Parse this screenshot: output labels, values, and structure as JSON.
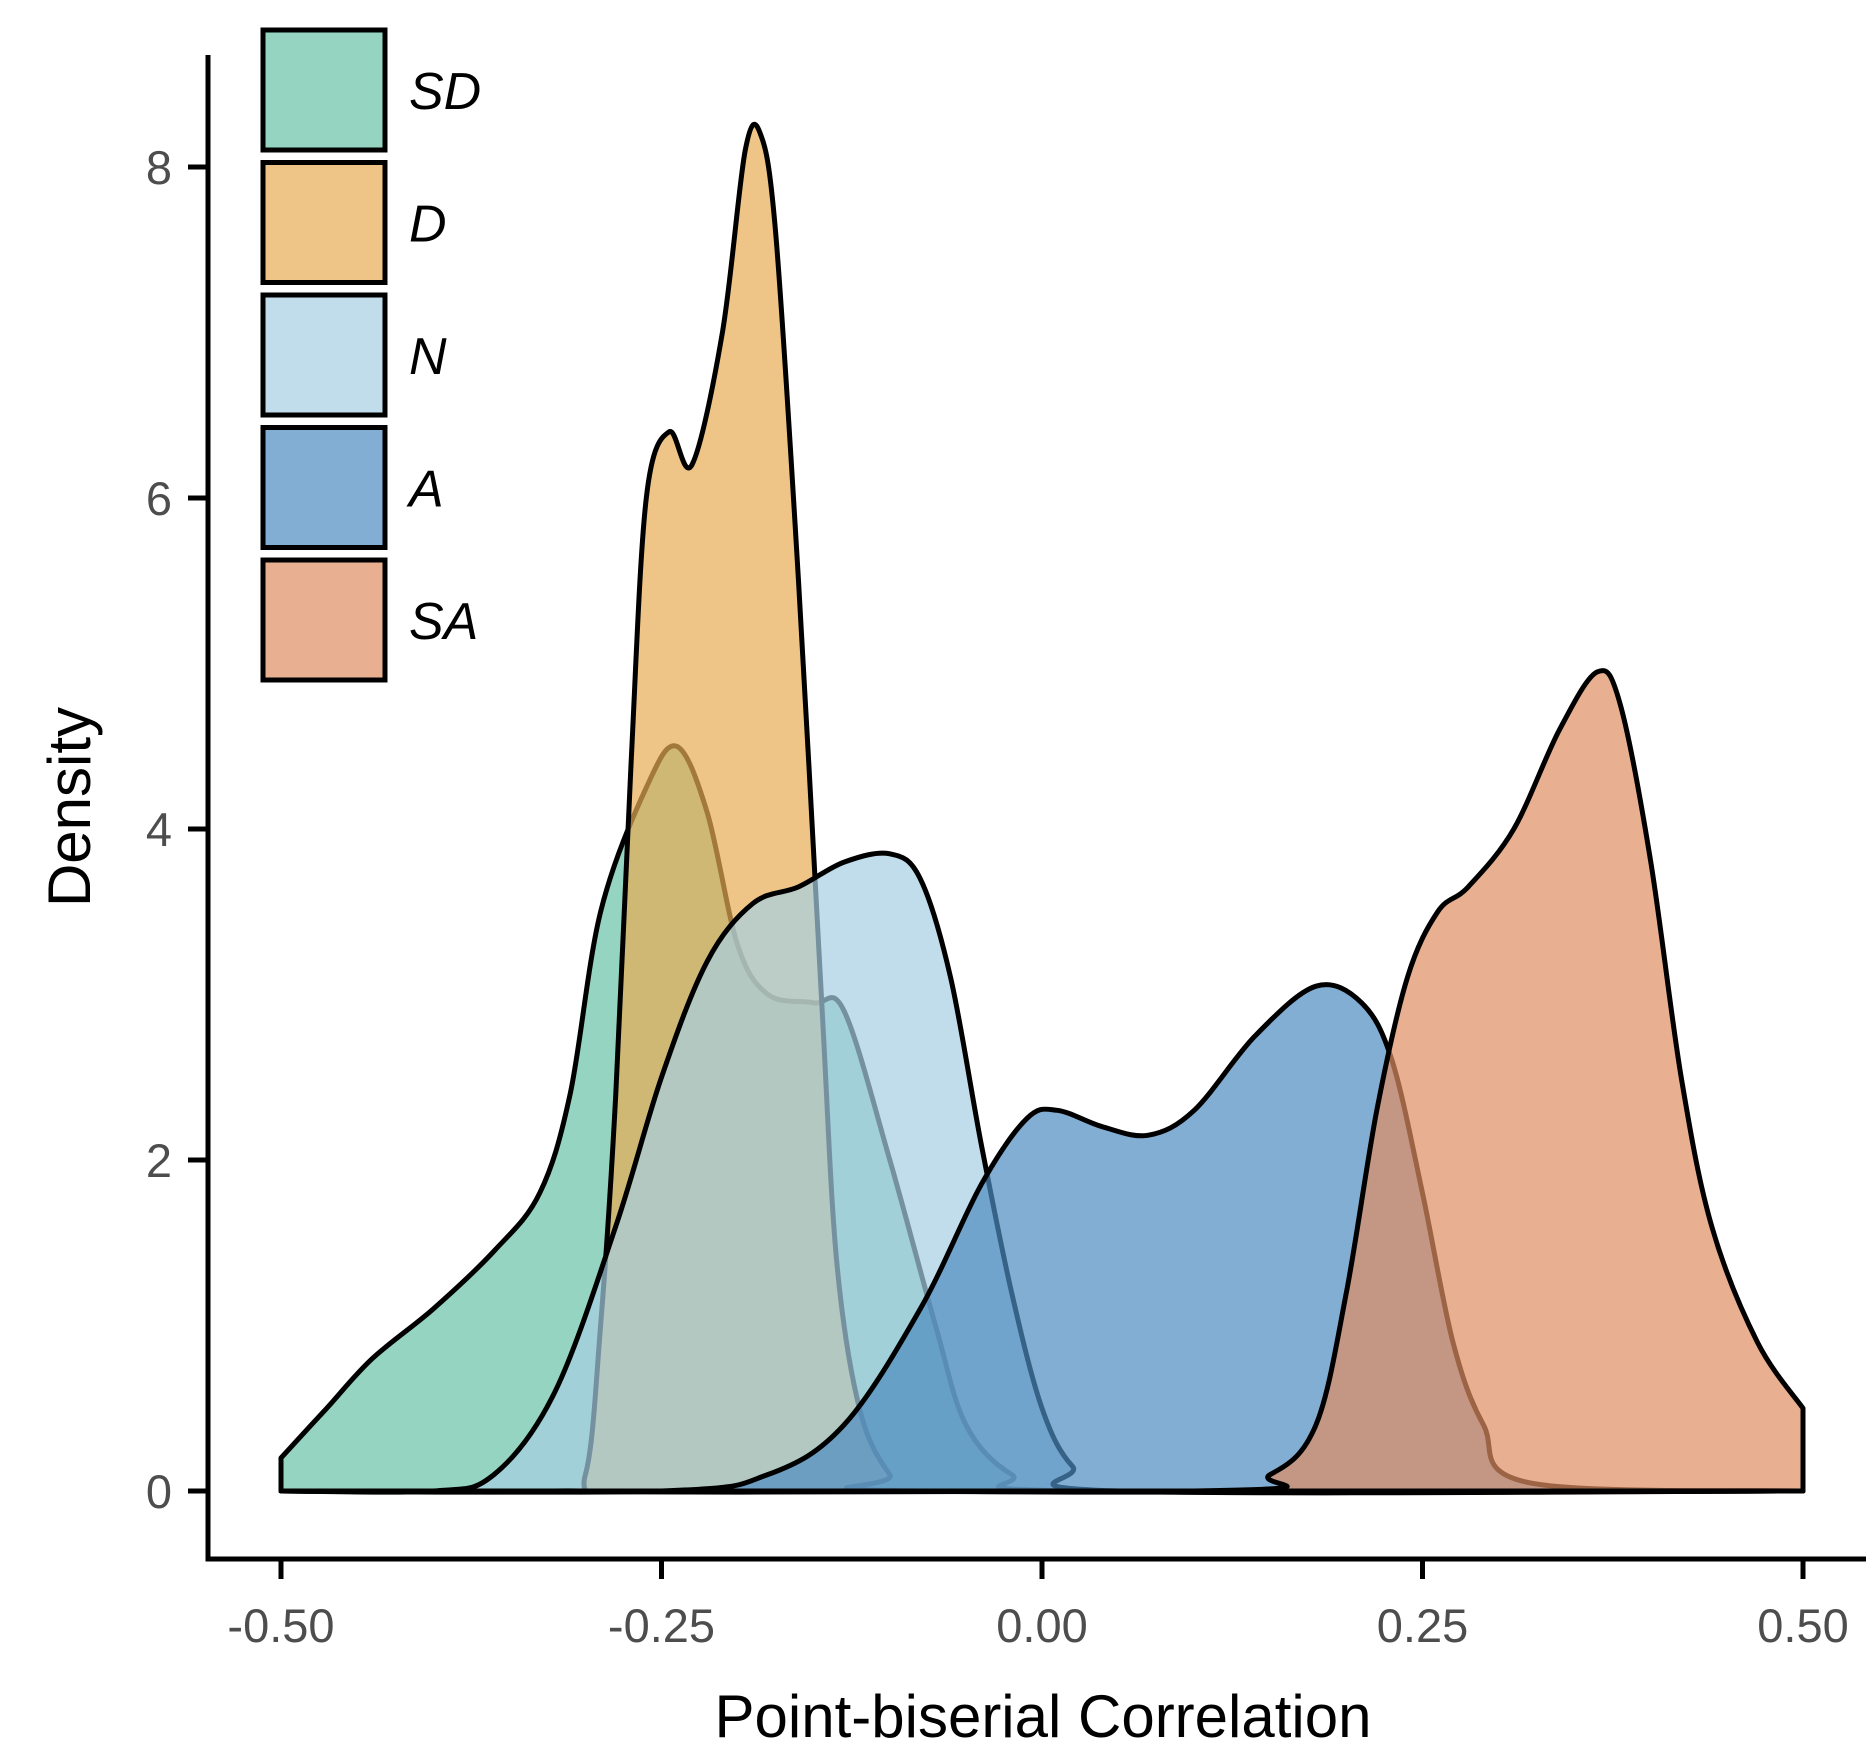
{
  "chart_data": {
    "type": "area",
    "title": "",
    "xlabel": "Point-biserial Correlation",
    "ylabel": "Density",
    "xlim": [
      -0.55,
      0.52
    ],
    "ylim": [
      -0.2,
      8.6
    ],
    "x_ticks": [
      -0.5,
      -0.25,
      0.0,
      0.25,
      0.5
    ],
    "x_tick_labels": [
      "-0.50",
      "-0.25",
      "0.00",
      "0.25",
      "0.50"
    ],
    "y_ticks": [
      0,
      2,
      4,
      6,
      8
    ],
    "y_tick_labels": [
      "0",
      "2",
      "4",
      "6",
      "8"
    ],
    "grid": false,
    "legend_position": "top-left",
    "series": [
      {
        "name": "SD",
        "color": "#66c2a5",
        "points": [
          [
            -0.5,
            0.2
          ],
          [
            -0.47,
            0.5
          ],
          [
            -0.44,
            0.8
          ],
          [
            -0.4,
            1.1
          ],
          [
            -0.36,
            1.45
          ],
          [
            -0.33,
            1.8
          ],
          [
            -0.31,
            2.4
          ],
          [
            -0.29,
            3.5
          ],
          [
            -0.26,
            4.25
          ],
          [
            -0.24,
            4.5
          ],
          [
            -0.22,
            4.1
          ],
          [
            -0.2,
            3.3
          ],
          [
            -0.18,
            3.0
          ],
          [
            -0.15,
            2.95
          ],
          [
            -0.13,
            2.9
          ],
          [
            -0.1,
            2.0
          ],
          [
            -0.07,
            1.0
          ],
          [
            -0.05,
            0.4
          ],
          [
            -0.02,
            0.1
          ],
          [
            0.02,
            0.0
          ],
          [
            0.5,
            0.0
          ]
        ]
      },
      {
        "name": "D",
        "color": "#e7ad52",
        "points": [
          [
            -0.5,
            0.0
          ],
          [
            -0.32,
            0.0
          ],
          [
            -0.3,
            0.1
          ],
          [
            -0.29,
            1.0
          ],
          [
            -0.28,
            2.4
          ],
          [
            -0.27,
            4.4
          ],
          [
            -0.26,
            6.0
          ],
          [
            -0.245,
            6.4
          ],
          [
            -0.23,
            6.2
          ],
          [
            -0.21,
            7.0
          ],
          [
            -0.195,
            8.1
          ],
          [
            -0.185,
            8.2
          ],
          [
            -0.175,
            7.6
          ],
          [
            -0.16,
            5.5
          ],
          [
            -0.145,
            3.0
          ],
          [
            -0.135,
            1.4
          ],
          [
            -0.12,
            0.5
          ],
          [
            -0.1,
            0.1
          ],
          [
            -0.08,
            0.0
          ],
          [
            0.5,
            0.0
          ]
        ]
      },
      {
        "name": "N",
        "color": "#a6cee3",
        "points": [
          [
            -0.5,
            0.0
          ],
          [
            -0.4,
            0.0
          ],
          [
            -0.36,
            0.1
          ],
          [
            -0.32,
            0.6
          ],
          [
            -0.28,
            1.6
          ],
          [
            -0.25,
            2.5
          ],
          [
            -0.22,
            3.2
          ],
          [
            -0.19,
            3.55
          ],
          [
            -0.16,
            3.65
          ],
          [
            -0.13,
            3.8
          ],
          [
            -0.1,
            3.85
          ],
          [
            -0.08,
            3.7
          ],
          [
            -0.06,
            3.1
          ],
          [
            -0.04,
            2.1
          ],
          [
            -0.02,
            1.2
          ],
          [
            0.0,
            0.5
          ],
          [
            0.02,
            0.15
          ],
          [
            0.05,
            0.0
          ],
          [
            0.5,
            0.0
          ]
        ]
      },
      {
        "name": "A",
        "color": "#4f8bc0",
        "points": [
          [
            -0.5,
            0.0
          ],
          [
            -0.25,
            0.0
          ],
          [
            -0.18,
            0.1
          ],
          [
            -0.13,
            0.4
          ],
          [
            -0.08,
            1.1
          ],
          [
            -0.04,
            1.85
          ],
          [
            -0.01,
            2.25
          ],
          [
            0.01,
            2.3
          ],
          [
            0.04,
            2.2
          ],
          [
            0.07,
            2.15
          ],
          [
            0.1,
            2.3
          ],
          [
            0.14,
            2.75
          ],
          [
            0.18,
            3.05
          ],
          [
            0.21,
            2.95
          ],
          [
            0.23,
            2.6
          ],
          [
            0.25,
            1.8
          ],
          [
            0.27,
            0.9
          ],
          [
            0.29,
            0.4
          ],
          [
            0.32,
            0.05
          ],
          [
            0.5,
            0.0
          ]
        ]
      },
      {
        "name": "SA",
        "color": "#de8d63",
        "points": [
          [
            -0.5,
            0.0
          ],
          [
            0.1,
            0.0
          ],
          [
            0.15,
            0.1
          ],
          [
            0.18,
            0.4
          ],
          [
            0.2,
            1.2
          ],
          [
            0.22,
            2.3
          ],
          [
            0.24,
            3.1
          ],
          [
            0.26,
            3.5
          ],
          [
            0.28,
            3.65
          ],
          [
            0.31,
            4.0
          ],
          [
            0.34,
            4.6
          ],
          [
            0.365,
            4.95
          ],
          [
            0.38,
            4.75
          ],
          [
            0.4,
            3.8
          ],
          [
            0.42,
            2.5
          ],
          [
            0.44,
            1.6
          ],
          [
            0.47,
            0.9
          ],
          [
            0.5,
            0.5
          ]
        ]
      }
    ]
  }
}
